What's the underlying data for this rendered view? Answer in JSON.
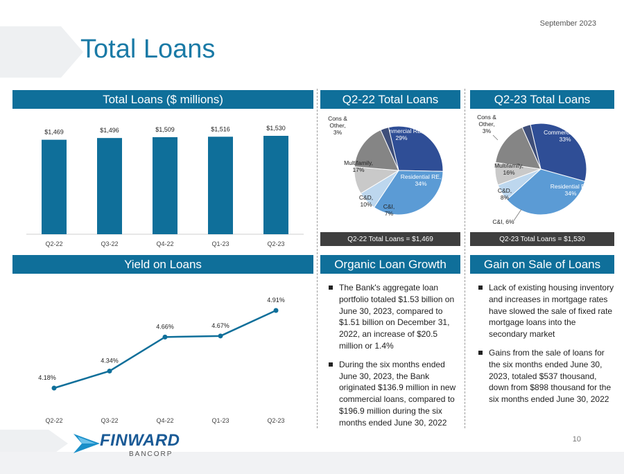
{
  "header": {
    "date": "September 2023",
    "title": "Total Loans"
  },
  "panels": {
    "total_loans_header": "Total Loans ($ millions)",
    "q222_header": "Q2-22 Total Loans",
    "q223_header": "Q2-23 Total Loans",
    "q222_footer": "Q2-22 Total Loans = $1,469",
    "q223_footer": "Q2-23 Total Loans = $1,530",
    "yield_header": "Yield on Loans",
    "organic_header": "Organic Loan Growth",
    "gain_header": "Gain on Sale of Loans"
  },
  "organic_bullets": [
    "The Bank's aggregate loan portfolio totaled $1.53 billion on June 30, 2023, compared to $1.51 billion on December 31, 2022, an increase of $20.5 million or 1.4%",
    "During the six months ended June 30, 2023, the Bank originated $136.9 million in new commercial loans, compared to $196.9 million during the six months ended June 30, 2022"
  ],
  "gain_bullets": [
    "Lack of existing housing inventory and increases in mortgage rates have slowed the sale of fixed rate mortgage loans into the secondary market",
    "Gains from the sale of loans for the six months ended June 30, 2023, totaled $537 thousand, down from $898 thousand for the six months ended June 30, 2022"
  ],
  "footer": {
    "brand": "FINWARD",
    "sub": "BANCORP",
    "page": "10"
  },
  "colors": {
    "header_bg": "#0f6f9a",
    "bar": "#0f6f9a",
    "line": "#0f6f9a",
    "title": "#1a7aa6"
  },
  "chart_data": [
    {
      "type": "bar",
      "title": "Total Loans ($ millions)",
      "categories": [
        "Q2-22",
        "Q3-22",
        "Q4-22",
        "Q1-23",
        "Q2-23"
      ],
      "values": [
        1469,
        1496,
        1509,
        1516,
        1530
      ],
      "labels": [
        "$1,469",
        "$1,496",
        "$1,509",
        "$1,516",
        "$1,530"
      ],
      "ylim": [
        0,
        1530
      ]
    },
    {
      "type": "pie",
      "title": "Q2-22 Total Loans",
      "slices": [
        {
          "name": "Commercial RE",
          "value": 29,
          "label": [
            "Commercial RE,",
            "29%"
          ],
          "color": "#2f4e96"
        },
        {
          "name": "Residential RE",
          "value": 34,
          "label": [
            "Residential RE,",
            "34%"
          ],
          "color": "#5b9bd5"
        },
        {
          "name": "C&I",
          "value": 7,
          "label": [
            "C&I,",
            "7%"
          ],
          "color": "#bdd7ee"
        },
        {
          "name": "C&D",
          "value": 10,
          "label": [
            "C&D,",
            "10%"
          ],
          "color": "#c9c9c9"
        },
        {
          "name": "Multifamily",
          "value": 17,
          "label": [
            "Multifamily,",
            "17%"
          ],
          "color": "#858585"
        },
        {
          "name": "Cons & Other",
          "value": 3,
          "label": [
            "Cons &",
            "Other,",
            "3%"
          ],
          "color": "#3f4f7a"
        }
      ]
    },
    {
      "type": "pie",
      "title": "Q2-23 Total Loans",
      "slices": [
        {
          "name": "Commercial RE",
          "value": 33,
          "label": [
            "Commercial RE,",
            "33%"
          ],
          "color": "#2f4e96"
        },
        {
          "name": "Residential RE",
          "value": 34,
          "label": [
            "Residential RE,",
            "34%"
          ],
          "color": "#5b9bd5"
        },
        {
          "name": "C&I",
          "value": 6,
          "label": [
            "C&I, 6%"
          ],
          "color": "#bdd7ee"
        },
        {
          "name": "C&D",
          "value": 8,
          "label": [
            "C&D,",
            "8%"
          ],
          "color": "#c9c9c9"
        },
        {
          "name": "Multifamily",
          "value": 16,
          "label": [
            "Multifamily,",
            "16%"
          ],
          "color": "#858585"
        },
        {
          "name": "Cons & Other",
          "value": 3,
          "label": [
            "Cons &",
            "Other,",
            "3%"
          ],
          "color": "#3f4f7a"
        }
      ]
    },
    {
      "type": "line",
      "title": "Yield on Loans",
      "categories": [
        "Q2-22",
        "Q3-22",
        "Q4-22",
        "Q1-23",
        "Q2-23"
      ],
      "values": [
        4.18,
        4.34,
        4.66,
        4.67,
        4.91
      ],
      "labels": [
        "4.18%",
        "4.34%",
        "4.66%",
        "4.67%",
        "4.91%"
      ],
      "ylim": [
        4.0,
        5.0
      ]
    }
  ]
}
